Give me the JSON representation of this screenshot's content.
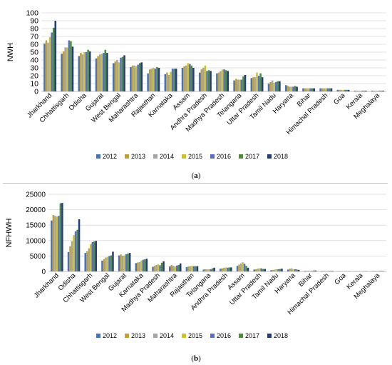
{
  "chart_data": [
    {
      "type": "bar",
      "panel_label": "a",
      "ylabel": "NWH",
      "xlabel": "",
      "ylim": [
        0,
        100
      ],
      "yticks": [
        0,
        10,
        20,
        30,
        40,
        50,
        60,
        70,
        80,
        90,
        100
      ],
      "grid": true,
      "legend_position": "bottom",
      "categories": [
        "Jharkhand",
        "Chhattisgarh",
        "Odisha",
        "Gujarat",
        "West Bengal",
        "Maharashtra",
        "Rajasthan",
        "Karnataka",
        "Assam",
        "Andhra Pradesh",
        "Madhya Pradesh",
        "Telangana",
        "Uttar Pradesh",
        "Tamil Nadu",
        "Haryana",
        "Bihar",
        "Himachal Pradesh",
        "Goa",
        "Kerala",
        "Meghalaya"
      ],
      "series": [
        {
          "name": "2012",
          "color": "#4472c4",
          "values": [
            61,
            48,
            45,
            42,
            36,
            31,
            23,
            22,
            30,
            24,
            23,
            14,
            17,
            10,
            8,
            4,
            4,
            2,
            1,
            1
          ]
        },
        {
          "name": "2013",
          "color": "#c5a032",
          "values": [
            65,
            51,
            49,
            45,
            38,
            33,
            28,
            24,
            32,
            28,
            24,
            16,
            18,
            12,
            7,
            4,
            4,
            2,
            1,
            1
          ]
        },
        {
          "name": "2014",
          "color": "#a5a5a5",
          "values": [
            62,
            56,
            47,
            47,
            40,
            33,
            29,
            21,
            33,
            30,
            26,
            15,
            18,
            14,
            6,
            4,
            4,
            2,
            1,
            1
          ]
        },
        {
          "name": "2015",
          "color": "#cfc323",
          "values": [
            69,
            56,
            50,
            48,
            37,
            32,
            30,
            25,
            36,
            33,
            28,
            15,
            24,
            11,
            6,
            4,
            4,
            2,
            1,
            1
          ]
        },
        {
          "name": "2016",
          "color": "#5b6ccf",
          "values": [
            75,
            65,
            50,
            49,
            43,
            34,
            29,
            29,
            35,
            26,
            28,
            15,
            20,
            12,
            6,
            4,
            4,
            2,
            1,
            1
          ]
        },
        {
          "name": "2017",
          "color": "#4c8f3a",
          "values": [
            81,
            64,
            53,
            53,
            44,
            36,
            31,
            29,
            33,
            27,
            27,
            19,
            23,
            13,
            7,
            4,
            4,
            2,
            1,
            1
          ]
        },
        {
          "name": "2018",
          "color": "#243c7e",
          "values": [
            90,
            57,
            51,
            49,
            46,
            37,
            30,
            29,
            30,
            26,
            26,
            21,
            18,
            13,
            6,
            4,
            4,
            2,
            1,
            1
          ]
        }
      ]
    },
    {
      "type": "bar",
      "panel_label": "b",
      "ylabel": "NFHWH",
      "xlabel": "",
      "ylim": [
        0,
        25000
      ],
      "yticks": [
        0,
        5000,
        10000,
        15000,
        20000,
        25000
      ],
      "grid": true,
      "legend_position": "bottom",
      "categories": [
        "Jharkhand",
        "Odisha",
        "Chhattisgarh",
        "West Bengal",
        "Gujarat",
        "Karnataka",
        "Madhya Pradesh",
        "Maharashtra",
        "Rajasthan",
        "Telangana",
        "Andhra Pradesh",
        "Assam",
        "Uttar Pradesh",
        "Tamil Nadu",
        "Haryana",
        "Bihar",
        "Himachal Pradesh",
        "Goa",
        "Kerala",
        "Meghalaya"
      ],
      "series": [
        {
          "name": "2012",
          "color": "#4472c4",
          "values": [
            16500,
            6300,
            6000,
            3500,
            5200,
            2700,
            1500,
            1600,
            1400,
            600,
            900,
            1800,
            600,
            400,
            600,
            200,
            150,
            50,
            50,
            100
          ]
        },
        {
          "name": "2013",
          "color": "#c5a032",
          "values": [
            18300,
            8200,
            6500,
            4000,
            5500,
            2900,
            1800,
            2100,
            1600,
            700,
            1000,
            2200,
            700,
            500,
            900,
            200,
            150,
            50,
            50,
            150
          ]
        },
        {
          "name": "2014",
          "color": "#a5a5a5",
          "values": [
            18000,
            9800,
            7500,
            4500,
            5100,
            3000,
            2100,
            1800,
            1700,
            650,
            1200,
            2600,
            900,
            600,
            1000,
            200,
            150,
            50,
            50,
            150
          ]
        },
        {
          "name": "2015",
          "color": "#cfc323",
          "values": [
            17800,
            11800,
            8800,
            4700,
            5200,
            3500,
            2300,
            1600,
            1800,
            700,
            1300,
            3000,
            1000,
            700,
            700,
            200,
            150,
            50,
            50,
            150
          ]
        },
        {
          "name": "2016",
          "color": "#5b6ccf",
          "values": [
            18000,
            13000,
            9500,
            5000,
            5600,
            3800,
            2000,
            1900,
            1700,
            750,
            1200,
            2500,
            1000,
            700,
            700,
            200,
            150,
            50,
            50,
            150
          ]
        },
        {
          "name": "2017",
          "color": "#4c8f3a",
          "values": [
            22100,
            13500,
            9700,
            5200,
            5800,
            3900,
            2800,
            2100,
            1700,
            1000,
            1300,
            1800,
            800,
            800,
            600,
            300,
            150,
            50,
            50,
            150
          ]
        },
        {
          "name": "2018",
          "color": "#243c7e",
          "values": [
            22200,
            16900,
            9900,
            6400,
            6000,
            4100,
            3300,
            2600,
            1700,
            1200,
            1300,
            1200,
            800,
            900,
            500,
            300,
            150,
            50,
            50,
            100
          ]
        }
      ]
    }
  ]
}
